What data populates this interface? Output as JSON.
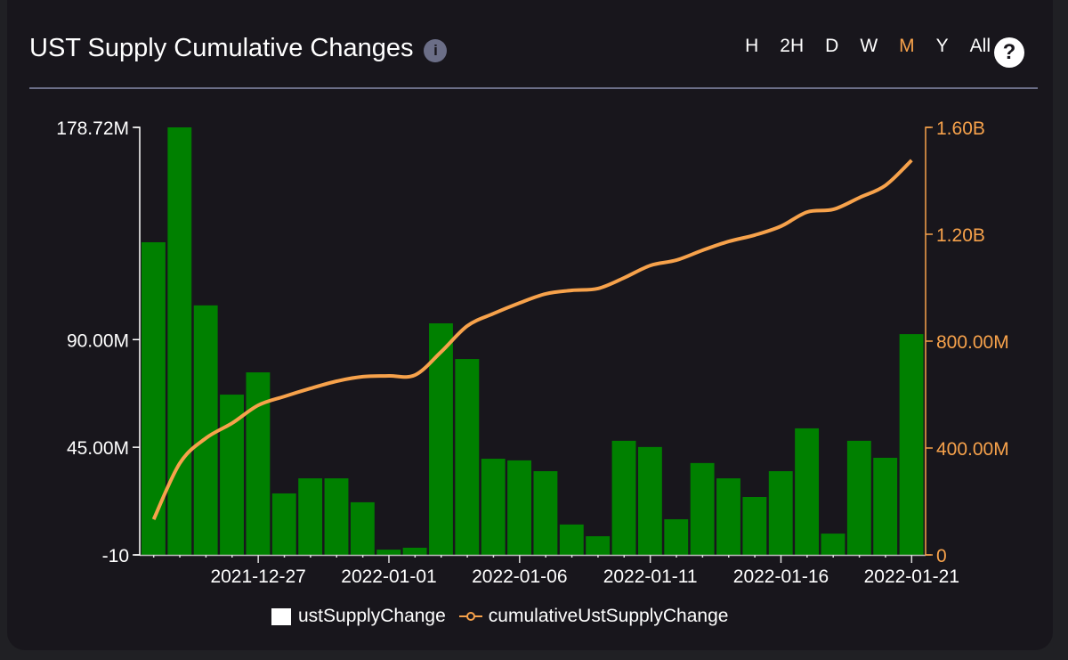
{
  "header": {
    "title": "UST Supply Cumulative Changes",
    "info_icon": "i",
    "help_icon": "?",
    "ranges": [
      {
        "label": "H",
        "active": false
      },
      {
        "label": "2H",
        "active": false
      },
      {
        "label": "D",
        "active": false
      },
      {
        "label": "W",
        "active": false
      },
      {
        "label": "M",
        "active": true
      },
      {
        "label": "Y",
        "active": false
      },
      {
        "label": "All",
        "active": false
      }
    ]
  },
  "colors": {
    "bar": "#008000",
    "line": "#f7a24b",
    "active_range": "#f7a24b",
    "left_axis": "#ffffff",
    "right_axis": "#f7a24b"
  },
  "legend": {
    "bar_label": "ustSupplyChange",
    "line_label": "cumulativeUstSupplyChange"
  },
  "chart_data": {
    "type": "bar",
    "title": "UST Supply Cumulative Changes",
    "xlabel": "",
    "ylabel": "",
    "categories": [
      "2021-12-23",
      "2021-12-24",
      "2021-12-25",
      "2021-12-26",
      "2021-12-27",
      "2021-12-28",
      "2021-12-29",
      "2021-12-30",
      "2021-12-31",
      "2022-01-01",
      "2022-01-02",
      "2022-01-03",
      "2022-01-04",
      "2022-01-05",
      "2022-01-06",
      "2022-01-07",
      "2022-01-08",
      "2022-01-09",
      "2022-01-10",
      "2022-01-11",
      "2022-01-12",
      "2022-01-13",
      "2022-01-14",
      "2022-01-15",
      "2022-01-16",
      "2022-01-17",
      "2022-01-18",
      "2022-01-19",
      "2022-01-20",
      "2022-01-21"
    ],
    "x_ticks": [
      "2021-12-27",
      "2022-01-01",
      "2022-01-06",
      "2022-01-11",
      "2022-01-16",
      "2022-01-21"
    ],
    "left_axis": {
      "ticks": [
        "-10",
        "45.00M",
        "90.00M",
        "178.72M"
      ],
      "tick_values": [
        -10,
        45000000,
        90000000,
        178720000
      ],
      "ylim": [
        -10,
        178720000
      ]
    },
    "right_axis": {
      "ticks": [
        "0",
        "400.00M",
        "800.00M",
        "1.20B",
        "1.60B"
      ],
      "tick_values": [
        0,
        400000000,
        800000000,
        1200000000,
        1600000000
      ],
      "ylim": [
        0,
        1600000000
      ]
    },
    "series": [
      {
        "name": "ustSupplyChange",
        "type": "bar",
        "axis": "left",
        "values": [
          130700000,
          178720000,
          104300000,
          67000000,
          76300000,
          25700000,
          32000000,
          32000000,
          22000000,
          2200000,
          3000000,
          96800000,
          81900000,
          40200000,
          39500000,
          35000000,
          12700000,
          7800000,
          47700000,
          45100000,
          14900000,
          38400000,
          32000000,
          24200000,
          35000000,
          52900000,
          8900000,
          47700000,
          40600000,
          92300000
        ]
      },
      {
        "name": "cumulativeUstSupplyChange",
        "type": "line",
        "axis": "right",
        "values": [
          133000000,
          343000000,
          437000000,
          493000000,
          560000000,
          593000000,
          623000000,
          650000000,
          667000000,
          670000000,
          673000000,
          760000000,
          857000000,
          903000000,
          943000000,
          977000000,
          990000000,
          997000000,
          1037000000,
          1083000000,
          1103000000,
          1140000000,
          1173000000,
          1197000000,
          1230000000,
          1283000000,
          1293000000,
          1337000000,
          1383000000,
          1477000000
        ]
      }
    ],
    "legend_position": "bottom",
    "grid": false
  }
}
